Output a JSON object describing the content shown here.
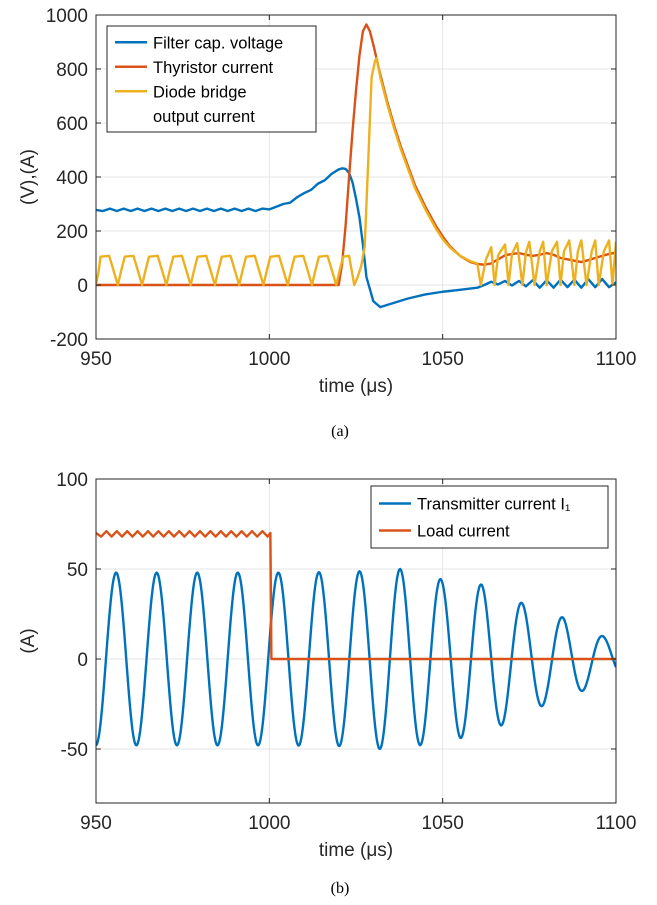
{
  "chart_data": [
    {
      "type": "line",
      "caption": "(a)",
      "xlabel": "time (μs)",
      "ylabel": "(V),(A)",
      "xlim": [
        950,
        1100
      ],
      "ylim": [
        -200,
        1000
      ],
      "xticks": [
        950,
        1000,
        1050,
        1100
      ],
      "yticks": [
        -200,
        0,
        200,
        400,
        600,
        800,
        1000
      ],
      "grid": true,
      "legend_position": "top-left",
      "series": [
        {
          "name": "Filter cap. voltage",
          "color": "#0072BD",
          "x": [
            950,
            952,
            954,
            956,
            958,
            960,
            962,
            964,
            966,
            968,
            970,
            972,
            974,
            976,
            978,
            980,
            982,
            984,
            986,
            988,
            990,
            992,
            994,
            996,
            998,
            1000,
            1002,
            1004,
            1006,
            1008,
            1010,
            1012,
            1014,
            1016,
            1018,
            1020,
            1021,
            1022,
            1023,
            1024,
            1025,
            1026,
            1027,
            1028,
            1030,
            1032,
            1035,
            1040,
            1045,
            1050,
            1055,
            1060,
            1062,
            1064,
            1066,
            1068,
            1070,
            1072,
            1074,
            1076,
            1078,
            1080,
            1082,
            1084,
            1086,
            1088,
            1090,
            1092,
            1094,
            1096,
            1098,
            1100
          ],
          "y": [
            278,
            274,
            283,
            274,
            283,
            274,
            283,
            274,
            283,
            274,
            283,
            274,
            283,
            274,
            283,
            274,
            283,
            274,
            283,
            274,
            283,
            274,
            283,
            274,
            283,
            280,
            290,
            300,
            305,
            325,
            340,
            352,
            375,
            388,
            412,
            428,
            432,
            430,
            415,
            380,
            320,
            250,
            150,
            30,
            -60,
            -82,
            -70,
            -50,
            -35,
            -25,
            -18,
            -10,
            0,
            12,
            2,
            15,
            -2,
            15,
            -5,
            18,
            -10,
            18,
            -10,
            20,
            -8,
            20,
            -10,
            22,
            -8,
            22,
            -8,
            10
          ]
        },
        {
          "name": "Thyristor current",
          "color": "#D95319",
          "x": [
            950,
            1020,
            1021,
            1022,
            1023,
            1024,
            1025,
            1026,
            1027,
            1028,
            1029,
            1030,
            1032,
            1034,
            1036,
            1038,
            1040,
            1042,
            1045,
            1048,
            1050,
            1052,
            1055,
            1058,
            1060,
            1062,
            1064,
            1066,
            1068,
            1070,
            1072,
            1074,
            1076,
            1078,
            1080,
            1082,
            1084,
            1086,
            1088,
            1090,
            1092,
            1094,
            1096,
            1098,
            1100
          ],
          "y": [
            0,
            0,
            80,
            220,
            400,
            570,
            720,
            850,
            940,
            965,
            940,
            890,
            780,
            680,
            590,
            510,
            440,
            370,
            290,
            220,
            180,
            145,
            108,
            85,
            78,
            75,
            80,
            95,
            110,
            115,
            118,
            112,
            108,
            112,
            118,
            112,
            100,
            95,
            90,
            85,
            92,
            100,
            108,
            115,
            120
          ]
        },
        {
          "name": "Diode bridge output current",
          "color": "#EDB120",
          "x": [
            950,
            950.8,
            951.3,
            953.8,
            956.3,
            957.3,
            958.3,
            960.8,
            963.3,
            964.3,
            965.3,
            967.8,
            970.3,
            971.3,
            972.3,
            974.8,
            977.3,
            978.3,
            979.3,
            981.8,
            984.3,
            985.3,
            986.3,
            988.8,
            991.3,
            992.3,
            993.3,
            995.8,
            998.3,
            999.3,
            1000.3,
            1002.8,
            1005.3,
            1006.3,
            1007.3,
            1009.8,
            1012.3,
            1013.3,
            1014.3,
            1016.8,
            1019.3,
            1020.3,
            1021.3,
            1023,
            1024.5,
            1025.5,
            1026.5,
            1027.5,
            1028.5,
            1029.5,
            1030.5,
            1031,
            1032,
            1034,
            1036,
            1038,
            1040,
            1042,
            1045,
            1048,
            1050,
            1052,
            1055,
            1058,
            1060,
            1061,
            1062.5,
            1064,
            1065,
            1066,
            1068,
            1069,
            1070,
            1071.5,
            1073,
            1074,
            1075,
            1076.5,
            1078,
            1079,
            1080,
            1081.5,
            1083,
            1084,
            1085,
            1086.5,
            1088,
            1089,
            1090,
            1091.5,
            1093,
            1094,
            1095,
            1096.5,
            1098,
            1099,
            1100
          ],
          "y": [
            0,
            55,
            105,
            108,
            0,
            55,
            105,
            108,
            0,
            55,
            105,
            108,
            0,
            55,
            105,
            108,
            0,
            55,
            105,
            108,
            0,
            55,
            105,
            108,
            0,
            55,
            105,
            108,
            0,
            55,
            105,
            108,
            0,
            55,
            105,
            108,
            0,
            55,
            105,
            108,
            0,
            55,
            105,
            108,
            0,
            30,
            70,
            140,
            450,
            770,
            830,
            840,
            770,
            670,
            580,
            500,
            430,
            360,
            280,
            210,
            170,
            140,
            108,
            88,
            80,
            0,
            95,
            140,
            0,
            110,
            150,
            0,
            115,
            155,
            0,
            120,
            160,
            0,
            125,
            160,
            0,
            125,
            160,
            0,
            125,
            165,
            0,
            125,
            165,
            0,
            125,
            165,
            0,
            125,
            165,
            0,
            160
          ]
        }
      ]
    },
    {
      "type": "line",
      "caption": "(b)",
      "xlabel": "time (μs)",
      "ylabel": "(A)",
      "xlim": [
        950,
        1100
      ],
      "ylim": [
        -80,
        100
      ],
      "xticks": [
        950,
        1000,
        1050,
        1100
      ],
      "yticks": [
        -50,
        0,
        50,
        100
      ],
      "grid": true,
      "legend_position": "top-right",
      "series": [
        {
          "name": "Transmitter current I₁",
          "color": "#0072BD",
          "sine": {
            "x_start": 950,
            "x_end": 1100,
            "period": 11.7,
            "peak_time": 955.8,
            "amplitude_breakpoints": {
              "x": [
                950,
                1000,
                1005,
                1025,
                1032,
                1040,
                1045,
                1050,
                1055,
                1062,
                1068,
                1073,
                1080,
                1085,
                1090,
                1097,
                1100
              ],
              "amp": [
                48,
                48,
                48,
                48.5,
                50,
                50,
                47,
                44,
                44,
                41,
                36,
                31,
                25,
                23,
                18,
                12,
                10
              ]
            }
          }
        },
        {
          "name": "Load current",
          "color": "#D95319",
          "x": [
            950,
            951.5,
            953,
            954.5,
            956,
            957.5,
            959,
            960.5,
            962,
            963.5,
            965,
            966.5,
            968,
            969.5,
            971,
            972.5,
            974,
            975.5,
            977,
            978.5,
            980,
            981.5,
            983,
            984.5,
            986,
            987.5,
            989,
            990.5,
            992,
            993.5,
            995,
            996.5,
            998,
            999.5,
            1000.3,
            1000.6,
            1100
          ],
          "y": [
            70,
            68,
            71,
            68,
            71,
            68,
            71,
            68,
            71,
            68,
            71,
            68,
            71,
            68,
            71,
            68,
            71,
            68,
            71,
            68,
            71,
            68,
            71,
            68,
            71,
            68,
            71,
            68,
            71,
            68,
            71,
            68,
            71,
            68,
            70,
            0,
            0
          ]
        }
      ]
    }
  ]
}
